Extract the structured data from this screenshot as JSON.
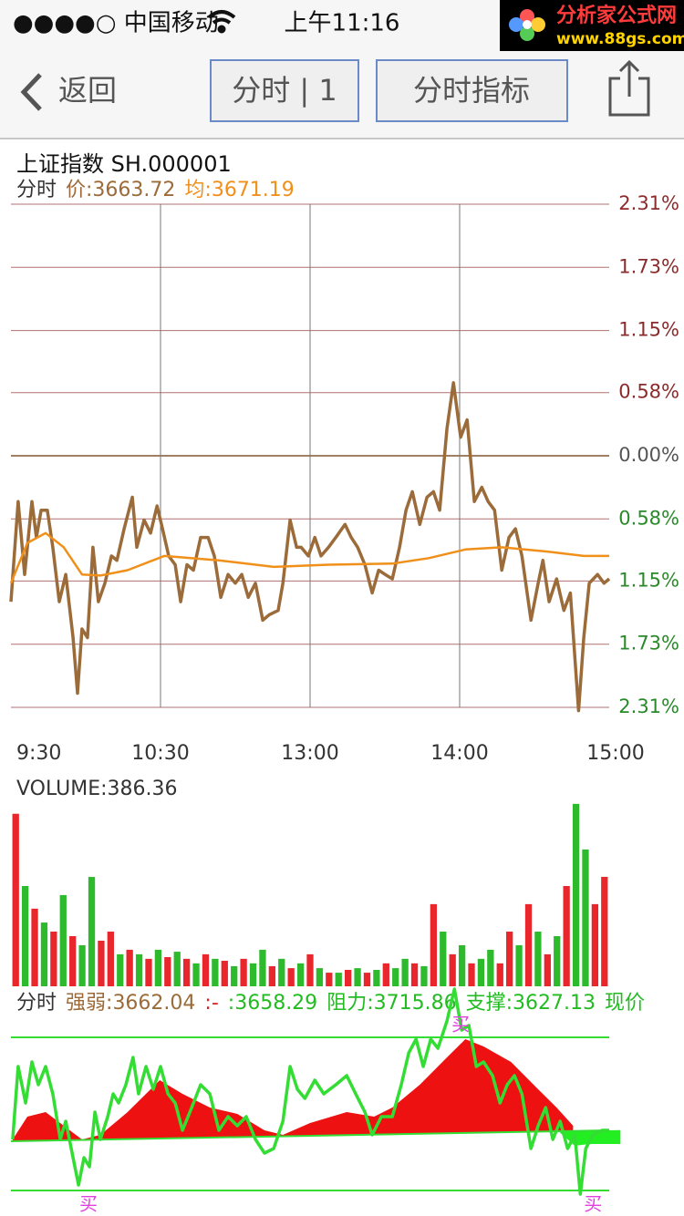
{
  "status_bar": {
    "carrier": "●●●●○ 中国移动",
    "time": "上午11:16"
  },
  "watermark": {
    "name": "分析家公式网",
    "url": "www.88gs.com"
  },
  "nav": {
    "back": "返回",
    "buttons": [
      "分时 | 1",
      "分时指标"
    ]
  },
  "chart_data": [
    {
      "type": "line",
      "title": "上证指数 SH.000001",
      "legend": [
        {
          "text": "分时",
          "color": "#333333"
        },
        {
          "text": "价:3663.72",
          "color": "#9b6b3a"
        },
        {
          "text": "均:3671.19",
          "color": "#f0901a"
        }
      ],
      "xlim": [
        0,
        240
      ],
      "xticks": [
        {
          "value": 0,
          "label": "9:30"
        },
        {
          "value": 60,
          "label": "10:30"
        },
        {
          "value": 120,
          "label": "13:00"
        },
        {
          "value": 180,
          "label": "14:00"
        },
        {
          "value": 240,
          "label": "15:00"
        }
      ],
      "ylim": [
        -2.31,
        2.31
      ],
      "yticks": [
        {
          "value": 2.31,
          "label": "2.31%"
        },
        {
          "value": 1.73,
          "label": "1.73%"
        },
        {
          "value": 1.15,
          "label": "1.15%"
        },
        {
          "value": 0.58,
          "label": "0.58%"
        },
        {
          "value": 0,
          "label": "0.00%"
        },
        {
          "value": -0.58,
          "label": "0.58%"
        },
        {
          "value": -1.15,
          "label": "1.15%"
        },
        {
          "value": -1.73,
          "label": "1.73%"
        },
        {
          "value": -2.31,
          "label": "2.31%"
        }
      ],
      "tick_colors": {
        "up": "#8b2b2b",
        "flat": "#555555",
        "down": "#2a8a2a"
      },
      "grid": true,
      "series": [
        {
          "color": "#9b6b3a",
          "x": [
            0,
            2.9,
            5.5,
            8.4,
            10.2,
            12.1,
            14.6,
            16.8,
            19.4,
            22,
            24.9,
            26.7,
            28.5,
            30.7,
            32.9,
            35.1,
            37.7,
            40.3,
            42.5,
            45.4,
            48.7,
            50.5,
            53.4,
            56,
            58.6,
            60.8,
            63.3,
            65.9,
            68.1,
            70.6,
            73.2,
            76.1,
            79.1,
            81.6,
            84.2,
            87.1,
            90,
            92.6,
            95.2,
            98.1,
            101,
            103.6,
            107.2,
            109.1,
            112,
            114.6,
            116.4,
            119.3,
            121.9,
            124.4,
            127.4,
            130.3,
            134,
            136.5,
            139.1,
            142,
            144.9,
            147.5,
            150.1,
            153,
            155.9,
            158.5,
            161,
            164,
            166.9,
            169.5,
            172,
            174.9,
            177.5,
            180.4,
            183,
            185.9,
            188.9,
            191.4,
            194,
            196.9,
            199.8,
            202.4,
            205,
            208.6,
            211.5,
            213.4,
            215.9,
            218.9,
            221.8,
            224.4,
            227.7,
            229.8,
            232,
            235.3,
            237.9,
            240
          ],
          "values": [
            -1.34,
            -0.42,
            -1.09,
            -0.42,
            -0.75,
            -0.5,
            -0.5,
            -0.84,
            -1.34,
            -1.09,
            -1.67,
            -2.18,
            -1.59,
            -1.67,
            -0.84,
            -1.34,
            -1.17,
            -0.92,
            -0.96,
            -0.67,
            -0.38,
            -0.84,
            -0.59,
            -0.71,
            -0.46,
            -0.67,
            -0.92,
            -1,
            -1.34,
            -1,
            -1.05,
            -0.75,
            -0.75,
            -0.92,
            -1.3,
            -1.09,
            -1.17,
            -1.09,
            -1.3,
            -1.17,
            -1.51,
            -1.46,
            -1.42,
            -1.17,
            -0.59,
            -0.84,
            -0.84,
            -0.92,
            -0.75,
            -0.92,
            -0.84,
            -0.75,
            -0.63,
            -0.75,
            -0.84,
            -1,
            -1.26,
            -1.05,
            -1.09,
            -1.13,
            -0.84,
            -0.5,
            -0.33,
            -0.63,
            -0.38,
            -0.33,
            -0.5,
            0.25,
            0.67,
            0.17,
            0.33,
            -0.42,
            -0.29,
            -0.42,
            -0.5,
            -1.05,
            -0.75,
            -0.67,
            -0.92,
            -1.51,
            -1.17,
            -0.96,
            -1.34,
            -1.13,
            -1.42,
            -1.26,
            -2.34,
            -1.67,
            -1.17,
            -1.09,
            -1.17,
            -1.13
          ]
        },
        {
          "color": "#f0901a",
          "x": [
            0,
            6.6,
            13.9,
            21.2,
            28.5,
            35.9,
            46.8,
            61.5,
            83.4,
            105.4,
            127.4,
            153,
            167.6,
            182.3,
            196.9,
            215.2,
            229.8,
            240
          ],
          "values": [
            -1.17,
            -0.8,
            -0.71,
            -0.84,
            -1.09,
            -1.1,
            -1.05,
            -0.92,
            -0.96,
            -1.02,
            -1,
            -0.99,
            -0.94,
            -0.86,
            -0.84,
            -0.88,
            -0.92,
            -0.92
          ]
        }
      ]
    },
    {
      "type": "bar",
      "title": "VOLUME:386.36",
      "ylim": [
        0,
        650
      ],
      "values": [
        609,
        354,
        274,
        225,
        193,
        322,
        177,
        145,
        386,
        161,
        193,
        113,
        129,
        113,
        97,
        129,
        103,
        122,
        97,
        81,
        113,
        97,
        90,
        71,
        97,
        81,
        129,
        71,
        97,
        64,
        81,
        113,
        64,
        48,
        48,
        58,
        64,
        48,
        58,
        81,
        64,
        97,
        81,
        71,
        290,
        193,
        113,
        145,
        81,
        97,
        129,
        81,
        193,
        145,
        290,
        193,
        113,
        177,
        354,
        644,
        483,
        290,
        386.36
      ],
      "colors": [
        "#e8262c",
        "#2dbb2d",
        "#e8262c",
        "#2dbb2d",
        "#e8262c",
        "#2dbb2d",
        "#e8262c",
        "#2dbb2d",
        "#2dbb2d",
        "#e8262c",
        "#e8262c",
        "#2dbb2d",
        "#e8262c",
        "#2dbb2d",
        "#e8262c",
        "#2dbb2d",
        "#e8262c",
        "#2dbb2d",
        "#e8262c",
        "#2dbb2d",
        "#e8262c",
        "#2dbb2d",
        "#e8262c",
        "#2dbb2d",
        "#e8262c",
        "#2dbb2d",
        "#2dbb2d",
        "#e8262c",
        "#2dbb2d",
        "#e8262c",
        "#2dbb2d",
        "#e8262c",
        "#2dbb2d",
        "#e8262c",
        "#2dbb2d",
        "#e8262c",
        "#2dbb2d",
        "#e8262c",
        "#2dbb2d",
        "#e8262c",
        "#2dbb2d",
        "#2dbb2d",
        "#e8262c",
        "#2dbb2d",
        "#e8262c",
        "#2dbb2d",
        "#e8262c",
        "#2dbb2d",
        "#e8262c",
        "#2dbb2d",
        "#2dbb2d",
        "#e8262c",
        "#e8262c",
        "#2dbb2d",
        "#e8262c",
        "#2dbb2d",
        "#e8262c",
        "#2dbb2d",
        "#e8262c",
        "#2dbb2d",
        "#2dbb2d",
        "#e8262c",
        "#e8262c"
      ]
    },
    {
      "type": "line",
      "legend": [
        {
          "text": "分时",
          "color": "#333333"
        },
        {
          "label": "强弱:",
          "value": 3662.04,
          "color": "#9b6b3a"
        },
        {
          "text": ":-",
          "color": "#e02020"
        },
        {
          "label": ":",
          "value": 3658.29,
          "color": "#22bb22"
        }
      ],
      "levels": [
        {
          "label": "阻力:",
          "value": 3715.86,
          "color": "#22bb22"
        },
        {
          "label": "支撑:",
          "value": 3627.13,
          "color": "#22bb22"
        }
      ],
      "current": {
        "text": "现价",
        "color": "#22bb22"
      },
      "level_color": "#33dd33",
      "xlim": [
        0,
        240
      ],
      "ylim": [
        3614.48,
        3741.2
      ],
      "baseline": {
        "color": "#33dd33",
        "x": [
          0,
          240
        ],
        "values": [
          3655.67,
          3662
        ]
      },
      "areas": [
        {
          "color": "#ee1111",
          "x": [
            0.7,
            6.6,
            13.9,
            21.2,
            28.5,
            35.9,
            46.8,
            59.7,
            68.8,
            79.8,
            90.8,
            101.7,
            109.1,
            120,
            134.7,
            145.7,
            153,
            164,
            174.9,
            182.3,
            189.6,
            200.6,
            211.5,
            218.9,
            225.5
          ],
          "values": [
            3656.72,
            3669.92,
            3672.56,
            3664.64,
            3656.72,
            3659.36,
            3672.56,
            3691.04,
            3683.12,
            3675.2,
            3671.51,
            3662,
            3659.36,
            3666.23,
            3672.56,
            3669.92,
            3675.2,
            3688.4,
            3704.24,
            3714.8,
            3710.58,
            3701.6,
            3685.76,
            3675.2,
            3664.64
          ]
        },
        {
          "color": "#22ee22",
          "x": [
            220.3,
            226.2,
            232,
            238,
            244.5
          ],
          "values": [
            3660.5,
            3653,
            3654.08,
            3654.08,
            3654.08
          ]
        }
      ],
      "series": [
        {
          "color": "#33dd33",
          "x": [
            0.7,
            2.9,
            5.9,
            8.4,
            11,
            13.9,
            16.8,
            19.8,
            22,
            24.9,
            27.1,
            29.3,
            31.5,
            33.7,
            35.9,
            38.8,
            41,
            43.2,
            46.1,
            49,
            51.2,
            54.2,
            57.1,
            60,
            63,
            65.9,
            68.8,
            72.5,
            76.1,
            79.8,
            83.4,
            87.1,
            90.8,
            94.4,
            98.1,
            101.7,
            105.4,
            109.1,
            112,
            114.9,
            117.9,
            121.9,
            125.5,
            130.3,
            134.7,
            138.3,
            142,
            144.9,
            148.6,
            153,
            156.6,
            159.6,
            162.5,
            165.4,
            168.4,
            171.3,
            174.9,
            177.9,
            180.8,
            183.7,
            186.7,
            189.6,
            193.2,
            196.2,
            199.1,
            202,
            205,
            208.6,
            211.5,
            214.5,
            217.4,
            220.3,
            223.3,
            226.2,
            228.4,
            230.6,
            233.5,
            237.2,
            240
          ],
          "values": [
            3656.72,
            3698.96,
            3677.84,
            3701.6,
            3688.4,
            3698.96,
            3683.12,
            3656.72,
            3667.28,
            3646.16,
            3630.32,
            3646.16,
            3640.88,
            3672.56,
            3656.72,
            3669.92,
            3683.12,
            3677.84,
            3688.4,
            3704.24,
            3683.12,
            3698.96,
            3685.76,
            3698.96,
            3683.12,
            3677.84,
            3662,
            3675.2,
            3688.4,
            3683.12,
            3662,
            3669.92,
            3664.64,
            3669.92,
            3656.72,
            3648.8,
            3651.44,
            3667.28,
            3698.96,
            3685.76,
            3680.48,
            3691.04,
            3683.12,
            3688.4,
            3693.68,
            3683.12,
            3672.56,
            3659.36,
            3669.92,
            3669.92,
            3688.4,
            3706.88,
            3714.8,
            3698.96,
            3714.8,
            3709.52,
            3725.36,
            3743.84,
            3720.08,
            3722.72,
            3698.96,
            3701.6,
            3693.68,
            3677.84,
            3688.4,
            3693.68,
            3683.12,
            3651.44,
            3664.64,
            3675.2,
            3656.72,
            3667.28,
            3651.44,
            3659.36,
            3625.04,
            3651.44,
            3659.36,
            3662,
            3662
          ]
        }
      ],
      "annotation_color": "#e040e0",
      "annotations": [
        {
          "text": "买",
          "x": 31.1,
          "y": 3618.7
        },
        {
          "text": "买",
          "x": 180.4,
          "y": 3722.7
        },
        {
          "text": "买",
          "x": 233.5,
          "y": 3618.7
        }
      ]
    }
  ]
}
